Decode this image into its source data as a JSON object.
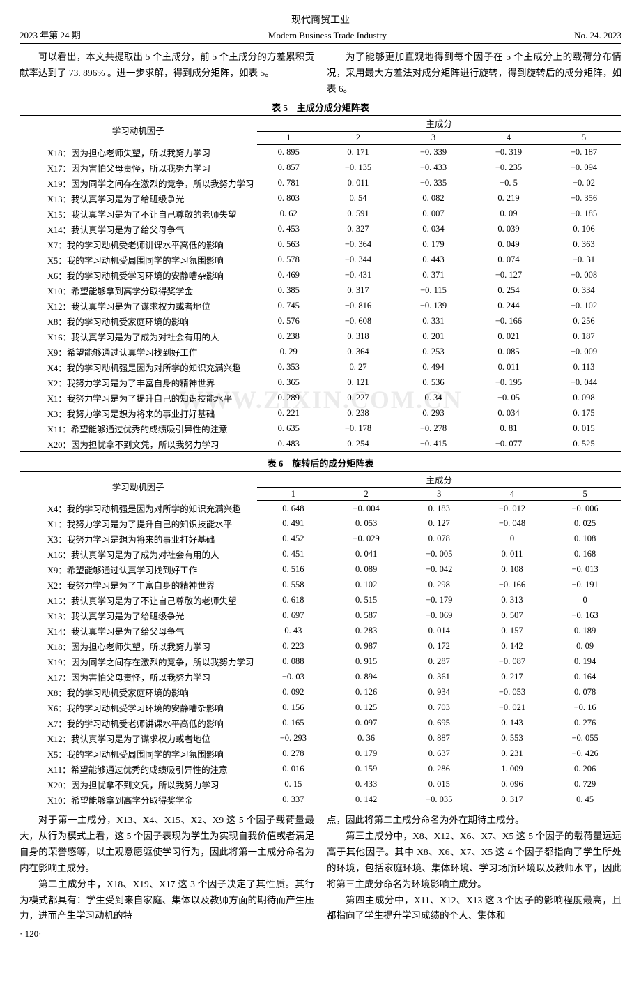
{
  "header": {
    "top_cn": "现代商贸工业",
    "left": "2023 年第 24 期",
    "center": "Modern Business Trade Industry",
    "right": "No. 24. 2023"
  },
  "watermark": "WWW.ZIXIN.COM.CN",
  "intro": {
    "left_p1": "可以看出，本文共提取出 5 个主成分，前 5 个主成分的方差累积贡献率达到了 73. 896% 。进一步求解，得到成分矩阵，如表 5。",
    "right_p1": "为了能够更加直观地得到每个因子在 5 个主成分上的载荷分布情况，采用最大方差法对成分矩阵进行旋转，得到旋转后的成分矩阵，如表 6。"
  },
  "table5": {
    "caption": "表 5　主成分成分矩阵表",
    "factor_header": "学习动机因子",
    "super_header": "主成分",
    "col_headers": [
      "1",
      "2",
      "3",
      "4",
      "5"
    ],
    "rows": [
      {
        "label": "X18：因为担心老师失望，所以我努力学习",
        "vals": [
          "0. 895",
          "0. 171",
          "−0. 339",
          "−0. 319",
          "−0. 187"
        ]
      },
      {
        "label": "X17：因为害怕父母责怪，所以我努力学习",
        "vals": [
          "0. 857",
          "−0. 135",
          "−0. 433",
          "−0. 235",
          "−0. 094"
        ]
      },
      {
        "label": "X19：因为同学之间存在激烈的竞争，所以我努力学习",
        "vals": [
          "0. 781",
          "0. 011",
          "−0. 335",
          "−0. 5",
          "−0. 02"
        ]
      },
      {
        "label": "X13：我认真学习是为了给班级争光",
        "vals": [
          "0. 803",
          "0. 54",
          "0. 082",
          "0. 219",
          "−0. 356"
        ]
      },
      {
        "label": "X15：我认真学习是为了不让自己尊敬的老师失望",
        "vals": [
          "0. 62",
          "0. 591",
          "0. 007",
          "0. 09",
          "−0. 185"
        ]
      },
      {
        "label": "X14：我认真学习是为了给父母争气",
        "vals": [
          "0. 453",
          "0. 327",
          "0. 034",
          "0. 039",
          "0. 106"
        ]
      },
      {
        "label": "X7：我的学习动机受老师讲课水平高低的影响",
        "vals": [
          "0. 563",
          "−0. 364",
          "0. 179",
          "0. 049",
          "0. 363"
        ]
      },
      {
        "label": "X5：我的学习动机受周围同学的学习氛围影响",
        "vals": [
          "0. 578",
          "−0. 344",
          "0. 443",
          "0. 074",
          "−0. 31"
        ]
      },
      {
        "label": "X6：我的学习动机受学习环境的安静嘈杂影响",
        "vals": [
          "0. 469",
          "−0. 431",
          "0. 371",
          "−0. 127",
          "−0. 008"
        ]
      },
      {
        "label": "X10：希望能够拿到高学分取得奖学金",
        "vals": [
          "0. 385",
          "0. 317",
          "−0. 115",
          "0. 254",
          "0. 334"
        ]
      },
      {
        "label": "X12：我认真学习是为了谋求权力或者地位",
        "vals": [
          "0. 745",
          "−0. 816",
          "−0. 139",
          "0. 244",
          "−0. 102"
        ]
      },
      {
        "label": "X8：我的学习动机受家庭环境的影响",
        "vals": [
          "0. 576",
          "−0. 608",
          "0. 331",
          "−0. 166",
          "0. 256"
        ]
      },
      {
        "label": "X16：我认真学习是为了成为对社会有用的人",
        "vals": [
          "0. 238",
          "0. 318",
          "0. 201",
          "0. 021",
          "0. 187"
        ]
      },
      {
        "label": "X9：希望能够通过认真学习找到好工作",
        "vals": [
          "0. 29",
          "0. 364",
          "0. 253",
          "0. 085",
          "−0. 009"
        ]
      },
      {
        "label": "X4：我的学习动机强是因为对所学的知识充满兴趣",
        "vals": [
          "0. 353",
          "0. 27",
          "0. 494",
          "0. 011",
          "0. 113"
        ]
      },
      {
        "label": "X2：我努力学习是为了丰富自身的精神世界",
        "vals": [
          "0. 365",
          "0. 121",
          "0. 536",
          "−0. 195",
          "−0. 044"
        ]
      },
      {
        "label": "X1：我努力学习是为了提升自己的知识技能水平",
        "vals": [
          "0. 289",
          "0. 227",
          "0. 34",
          "−0. 05",
          "0. 098"
        ]
      },
      {
        "label": "X3：我努力学习是想为将来的事业打好基础",
        "vals": [
          "0. 221",
          "0. 238",
          "0. 293",
          "0. 034",
          "0. 175"
        ]
      },
      {
        "label": "X11：希望能够通过优秀的成绩吸引异性的注意",
        "vals": [
          "0. 635",
          "−0. 178",
          "−0. 278",
          "0. 81",
          "0. 015"
        ]
      },
      {
        "label": "X20：因为担忧拿不到文凭，所以我努力学习",
        "vals": [
          "0. 483",
          "0. 254",
          "−0. 415",
          "−0. 077",
          "0. 525"
        ]
      }
    ]
  },
  "table6": {
    "caption": "表 6　旋转后的成分矩阵表",
    "factor_header": "学习动机因子",
    "super_header": "主成分",
    "col_headers": [
      "1",
      "2",
      "3",
      "4",
      "5"
    ],
    "rows": [
      {
        "label": "X4：我的学习动机强是因为对所学的知识充满兴趣",
        "vals": [
          "0. 648",
          "−0. 004",
          "0. 183",
          "−0. 012",
          "−0. 006"
        ]
      },
      {
        "label": "X1：我努力学习是为了提升自己的知识技能水平",
        "vals": [
          "0. 491",
          "0. 053",
          "0. 127",
          "−0. 048",
          "0. 025"
        ]
      },
      {
        "label": "X3：我努力学习是想为将来的事业打好基础",
        "vals": [
          "0. 452",
          "−0. 029",
          "0. 078",
          "0",
          "0. 108"
        ]
      },
      {
        "label": "X16：我认真学习是为了成为对社会有用的人",
        "vals": [
          "0. 451",
          "0. 041",
          "−0. 005",
          "0. 011",
          "0. 168"
        ]
      },
      {
        "label": "X9：希望能够通过认真学习找到好工作",
        "vals": [
          "0. 516",
          "0. 089",
          "−0. 042",
          "0. 108",
          "−0. 013"
        ]
      },
      {
        "label": "X2：我努力学习是为了丰富自身的精神世界",
        "vals": [
          "0. 558",
          "0. 102",
          "0. 298",
          "−0. 166",
          "−0. 191"
        ]
      },
      {
        "label": "X15：我认真学习是为了不让自己尊敬的老师失望",
        "vals": [
          "0. 618",
          "0. 515",
          "−0. 179",
          "0. 313",
          "0"
        ]
      },
      {
        "label": "X13：我认真学习是为了给班级争光",
        "vals": [
          "0. 697",
          "0. 587",
          "−0. 069",
          "0. 507",
          "−0. 163"
        ]
      },
      {
        "label": "X14：我认真学习是为了给父母争气",
        "vals": [
          "0. 43",
          "0. 283",
          "0. 014",
          "0. 157",
          "0. 189"
        ]
      },
      {
        "label": "X18：因为担心老师失望，所以我努力学习",
        "vals": [
          "0. 223",
          "0. 987",
          "0. 172",
          "0. 142",
          "0. 09"
        ]
      },
      {
        "label": "X19：因为同学之间存在激烈的竞争，所以我努力学习",
        "vals": [
          "0. 088",
          "0. 915",
          "0. 287",
          "−0. 087",
          "0. 194"
        ]
      },
      {
        "label": "X17：因为害怕父母责怪，所以我努力学习",
        "vals": [
          "−0. 03",
          "0. 894",
          "0. 361",
          "0. 217",
          "0. 164"
        ]
      },
      {
        "label": "X8：我的学习动机受家庭环境的影响",
        "vals": [
          "0. 092",
          "0. 126",
          "0. 934",
          "−0. 053",
          "0. 078"
        ]
      },
      {
        "label": "X6：我的学习动机受学习环境的安静嘈杂影响",
        "vals": [
          "0. 156",
          "0. 125",
          "0. 703",
          "−0. 021",
          "−0. 16"
        ]
      },
      {
        "label": "X7：我的学习动机受老师讲课水平高低的影响",
        "vals": [
          "0. 165",
          "0. 097",
          "0. 695",
          "0. 143",
          "0. 276"
        ]
      },
      {
        "label": "X12：我认真学习是为了谋求权力或者地位",
        "vals": [
          "−0. 293",
          "0. 36",
          "0. 887",
          "0. 553",
          "−0. 055"
        ]
      },
      {
        "label": "X5：我的学习动机受周围同学的学习氛围影响",
        "vals": [
          "0. 278",
          "0. 179",
          "0. 637",
          "0. 231",
          "−0. 426"
        ]
      },
      {
        "label": "X11：希望能够通过优秀的成绩吸引异性的注意",
        "vals": [
          "0. 016",
          "0. 159",
          "0. 286",
          "1. 009",
          "0. 206"
        ]
      },
      {
        "label": "X20：因为担忧拿不到文凭，所以我努力学习",
        "vals": [
          "0. 15",
          "0. 433",
          "0. 015",
          "0. 096",
          "0. 729"
        ]
      },
      {
        "label": "X10：希望能够拿到高学分取得奖学金",
        "vals": [
          "0. 337",
          "0. 142",
          "−0. 035",
          "0. 317",
          "0. 45"
        ]
      }
    ]
  },
  "analysis": {
    "left_p1": "对于第一主成分，X13、X4、X15、X2、X9 这 5 个因子载荷量最大，从行为模式上看，这 5 个因子表现为学生为实现自我价值或者满足自身的荣誉感等，以主观意愿驱使学习行为，因此将第一主成分命名为内在影响主成分。",
    "left_p2": "第二主成分中，X18、X19、X17 这 3 个因子决定了其性质。其行为模式都具有：学生受到来自家庭、集体以及教师方面的期待而产生压力，进而产生学习动机的特",
    "right_p1": "点，因此将第二主成分命名为外在期待主成分。",
    "right_p2": "第三主成分中，X8、X12、X6、X7、X5 这 5 个因子的载荷量远远高于其他因子。其中 X8、X6、X7、X5 这 4 个因子都指向了学生所处的环境，包括家庭环境、集体环境、学习场所环境以及教师水平，因此将第三主成分命名为环境影响主成分。",
    "right_p3": "第四主成分中，X11、X12、X13 这 3 个因子的影响程度最高，且都指向了学生提升学习成绩的个人、集体和"
  },
  "page_num": "· 120·"
}
